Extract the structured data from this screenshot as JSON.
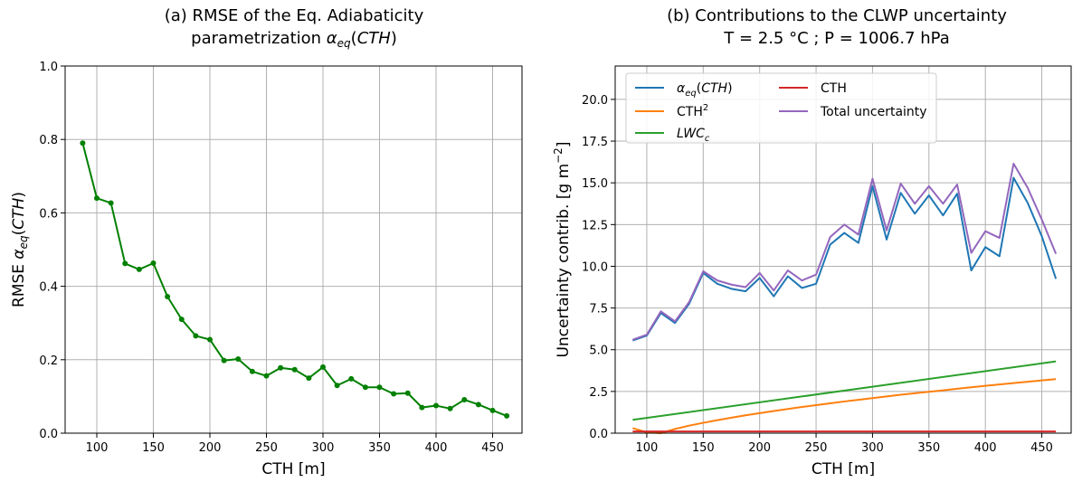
{
  "chart_data": [
    {
      "type": "line",
      "title_line1": "(a) RMSE of the Eq. Adiabaticity",
      "title_line2": "parametrization α_eq(CTH)",
      "title_line2_plain": "parametrization ",
      "xlabel": "CTH [m]",
      "ylabel": "RMSE α_eq(CTH)",
      "ylabel_plain": "RMSE ",
      "xlim": [
        72,
        476
      ],
      "ylim": [
        0,
        1.0
      ],
      "xticks": [
        100,
        150,
        200,
        250,
        300,
        350,
        400,
        450
      ],
      "yticks": [
        0.0,
        0.2,
        0.4,
        0.6,
        0.8,
        1.0
      ],
      "ytick_labels": [
        "0.0",
        "0.2",
        "0.4",
        "0.6",
        "0.8",
        "1.0"
      ],
      "grid": true,
      "series": [
        {
          "color": "#008000",
          "marker": "circle",
          "x": [
            87.5,
            100,
            112.5,
            125,
            137.5,
            150,
            162.5,
            175,
            187.5,
            200,
            212.5,
            225,
            237.5,
            250,
            262.5,
            275,
            287.5,
            300,
            312.5,
            325,
            337.5,
            350,
            362.5,
            375,
            387.5,
            400,
            412.5,
            425,
            437.5,
            450,
            462.5
          ],
          "y": [
            0.79,
            0.64,
            0.627,
            0.462,
            0.446,
            0.463,
            0.372,
            0.31,
            0.265,
            0.255,
            0.198,
            0.202,
            0.168,
            0.156,
            0.178,
            0.173,
            0.15,
            0.18,
            0.13,
            0.148,
            0.125,
            0.125,
            0.107,
            0.109,
            0.07,
            0.075,
            0.067,
            0.091,
            0.078,
            0.062,
            0.047
          ]
        }
      ]
    },
    {
      "type": "line",
      "title_line1": "(b) Contributions to the CLWP uncertainty",
      "title_line2": "T = 2.5 °C ; P = 1006.7 hPa",
      "xlabel": "CTH [m]",
      "ylabel": "Uncertainty contrib. [g m⁻²]",
      "xlim": [
        72,
        476
      ],
      "ylim": [
        0,
        22
      ],
      "xticks": [
        100,
        150,
        200,
        250,
        300,
        350,
        400,
        450
      ],
      "yticks": [
        0.0,
        2.5,
        5.0,
        7.5,
        10.0,
        12.5,
        15.0,
        17.5,
        20.0
      ],
      "ytick_labels": [
        "0.0",
        "2.5",
        "5.0",
        "7.5",
        "10.0",
        "12.5",
        "15.0",
        "17.5",
        "20.0"
      ],
      "grid": true,
      "legend_position": "upper-left",
      "series": [
        {
          "name": "α_eq(CTH)",
          "color": "#1f77b4",
          "x": [
            87.5,
            100,
            112.5,
            125,
            137.5,
            150,
            162.5,
            175,
            187.5,
            200,
            212.5,
            225,
            237.5,
            250,
            262.5,
            275,
            287.5,
            300,
            312.5,
            325,
            337.5,
            350,
            362.5,
            375,
            387.5,
            400,
            412.5,
            425,
            437.5,
            450,
            462.5
          ],
          "y": [
            5.55,
            5.85,
            7.2,
            6.6,
            7.75,
            9.6,
            8.95,
            8.65,
            8.5,
            9.3,
            8.2,
            9.4,
            8.7,
            8.95,
            11.3,
            12.0,
            11.4,
            14.8,
            11.6,
            14.4,
            13.15,
            14.25,
            13.05,
            14.35,
            9.75,
            11.15,
            10.6,
            15.3,
            13.8,
            11.8,
            9.25
          ]
        },
        {
          "name": "CTH²",
          "color": "#ff7f0e",
          "x": [
            87.5,
            100,
            112.5,
            125,
            137.5,
            150,
            162.5,
            175,
            187.5,
            200,
            212.5,
            225,
            237.5,
            250,
            262.5,
            275,
            287.5,
            300,
            312.5,
            325,
            337.5,
            350,
            362.5,
            375,
            387.5,
            400,
            412.5,
            425,
            437.5,
            450,
            462.5
          ],
          "y": [
            0.3,
            0.05,
            0.0,
            0.25,
            0.45,
            0.62,
            0.78,
            0.93,
            1.07,
            1.2,
            1.33,
            1.45,
            1.57,
            1.68,
            1.79,
            1.9,
            2.0,
            2.1,
            2.2,
            2.3,
            2.39,
            2.48,
            2.57,
            2.66,
            2.75,
            2.84,
            2.92,
            3.0,
            3.08,
            3.16,
            3.24
          ]
        },
        {
          "name": "LWC_c",
          "color": "#2ca02c",
          "x": [
            87.5,
            462.5
          ],
          "y": [
            0.8,
            4.3
          ]
        },
        {
          "name": "CTH",
          "color": "#d62728",
          "x": [
            87.5,
            462.5
          ],
          "y": [
            0.1,
            0.1
          ]
        },
        {
          "name": "Total uncertainty",
          "color": "#9467bd",
          "x": [
            87.5,
            100,
            112.5,
            125,
            137.5,
            150,
            162.5,
            175,
            187.5,
            200,
            212.5,
            225,
            237.5,
            250,
            262.5,
            275,
            287.5,
            300,
            312.5,
            325,
            337.5,
            350,
            362.5,
            375,
            387.5,
            400,
            412.5,
            425,
            437.5,
            450,
            462.5
          ],
          "y": [
            5.6,
            5.9,
            7.3,
            6.7,
            7.85,
            9.7,
            9.15,
            8.9,
            8.75,
            9.6,
            8.55,
            9.75,
            9.15,
            9.5,
            11.75,
            12.5,
            11.9,
            15.25,
            12.15,
            14.95,
            13.75,
            14.8,
            13.75,
            14.9,
            10.8,
            12.1,
            11.7,
            16.15,
            14.7,
            12.8,
            10.75
          ]
        }
      ],
      "legend": [
        {
          "label_main": "α",
          "label_sub": "eq",
          "label_rest": "(CTH)",
          "color": "#1f77b4"
        },
        {
          "label_main": "CTH",
          "label_sup": "2",
          "color": "#ff7f0e"
        },
        {
          "label_main": "LWC",
          "label_sub": "c",
          "color": "#2ca02c"
        },
        {
          "label_main": "CTH",
          "color": "#d62728"
        },
        {
          "label_main": "Total uncertainty",
          "color": "#9467bd"
        }
      ]
    }
  ]
}
